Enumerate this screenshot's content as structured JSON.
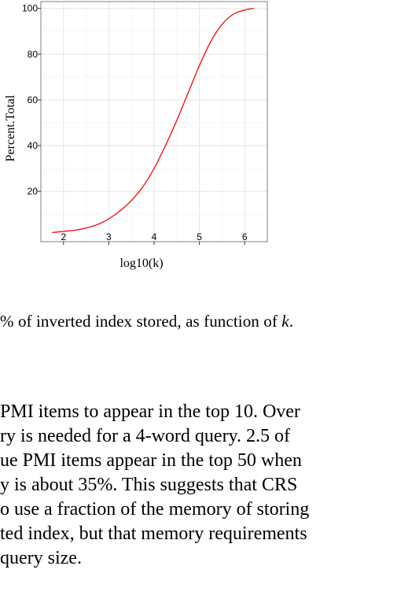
{
  "chart_data": {
    "type": "line",
    "xlabel": "log10(k)",
    "ylabel": "Percent.Total",
    "xlim": [
      1.5,
      6.5
    ],
    "ylim": [
      -2,
      103
    ],
    "x_ticks": [
      "2",
      "3",
      "4",
      "5",
      "6"
    ],
    "y_ticks": [
      "20",
      "40",
      "60",
      "80",
      "100"
    ],
    "grid": true,
    "line_color": "#ff0000",
    "series": [
      {
        "x": [
          1.75,
          2.0,
          2.25,
          2.5,
          2.75,
          3.0,
          3.25,
          3.5,
          3.75,
          4.0,
          4.25,
          4.5,
          4.75,
          5.0,
          5.25,
          5.5,
          5.75,
          6.0,
          6.2
        ],
        "values": [
          2.0,
          2.5,
          3.0,
          4.0,
          5.5,
          8.0,
          11.5,
          16.0,
          22.0,
          30.0,
          40.0,
          51.0,
          63.0,
          75.0,
          85.5,
          93.0,
          97.5,
          99.3,
          100.0
        ]
      }
    ]
  },
  "caption": {
    "prefix": "% of inverted index stored, as function of ",
    "var": "k",
    "suffix": "."
  },
  "body_lines": [
    "PMI items to appear in the top 10.  Over",
    "ry is needed for a 4-word query.  2.5 of",
    "ue PMI items appear in the top 50 when",
    "y is about 35%.  This suggests that CRS",
    "o use a fraction of the memory of storing",
    "ted index, but that memory requirements",
    "query size."
  ]
}
